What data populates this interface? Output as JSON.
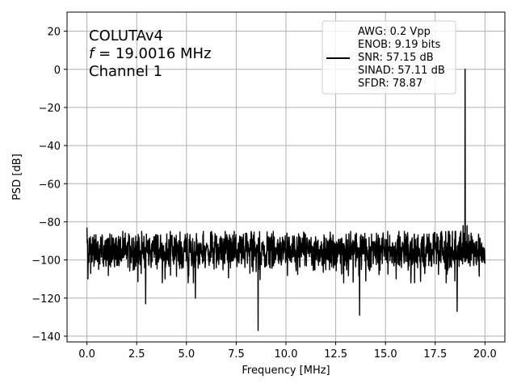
{
  "chart_data": {
    "type": "line",
    "xlabel": "Frequency [MHz]",
    "ylabel": "PSD [dB]",
    "xlim": [
      -1.0,
      21.0
    ],
    "ylim": [
      -143,
      30
    ],
    "xticks": [
      0.0,
      2.5,
      5.0,
      7.5,
      10.0,
      12.5,
      15.0,
      17.5,
      20.0
    ],
    "xtick_labels": [
      "0.0",
      "2.5",
      "5.0",
      "7.5",
      "10.0",
      "12.5",
      "15.0",
      "17.5",
      "20.0"
    ],
    "yticks": [
      20,
      0,
      -20,
      -40,
      -60,
      -80,
      -100,
      -120,
      -140
    ],
    "ytick_labels": [
      "20",
      "0",
      "−20",
      "−40",
      "−60",
      "−80",
      "−100",
      "−120",
      "−140"
    ],
    "grid": true,
    "line_color": "#000000",
    "annotation_lines": [
      {
        "prefix": "",
        "text": "COLUTAv4"
      },
      {
        "prefix": "f",
        "text": " = 19.0016 MHz"
      },
      {
        "prefix": "",
        "text": "Channel 1"
      }
    ],
    "legend": {
      "placement": "upper-right",
      "lines": [
        "AWG: 0.2 Vpp",
        "ENOB: 9.19 bits",
        "SNR: 57.15 dB",
        "SINAD: 57.11 dB",
        "SFDR: 78.87"
      ]
    },
    "series": [
      {
        "noise_floor_db": -95,
        "noise_range_db": [
          -112,
          -85
        ],
        "peaks": [
          {
            "x": 0.0,
            "y": -83
          },
          {
            "x": 19.0016,
            "y": 0
          }
        ],
        "dips": [
          {
            "x": 0.05,
            "y": -110
          },
          {
            "x": 2.95,
            "y": -123
          },
          {
            "x": 5.45,
            "y": -120
          },
          {
            "x": 8.6,
            "y": -137
          },
          {
            "x": 13.7,
            "y": -129
          },
          {
            "x": 18.6,
            "y": -127
          }
        ],
        "spurs": [
          {
            "x": 18.9,
            "y": -82
          },
          {
            "x": 19.1,
            "y": -82
          }
        ],
        "x_range": [
          0.0,
          20.0
        ]
      }
    ]
  }
}
